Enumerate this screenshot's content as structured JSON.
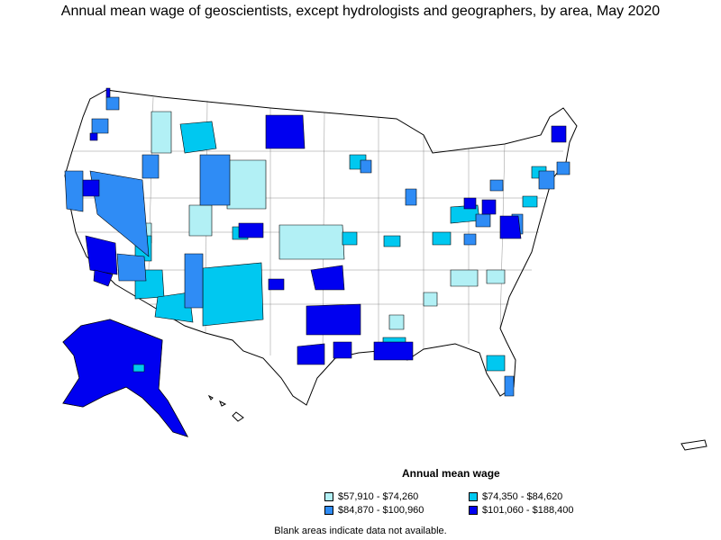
{
  "title": "Annual mean wage of geoscientists, except hydrologists and geographers, by area, May 2020",
  "legend": {
    "title": "Annual mean wage",
    "items": [
      {
        "label": "$57,910 - $74,260",
        "color": "#b2f0f5"
      },
      {
        "label": "$74,350 - $84,620",
        "color": "#00c8f0"
      },
      {
        "label": "$84,870 - $100,960",
        "color": "#2f8cf5"
      },
      {
        "label": "$101,060 - $188,400",
        "color": "#0000f0"
      }
    ]
  },
  "footnote": "Blank areas indicate data not available."
}
